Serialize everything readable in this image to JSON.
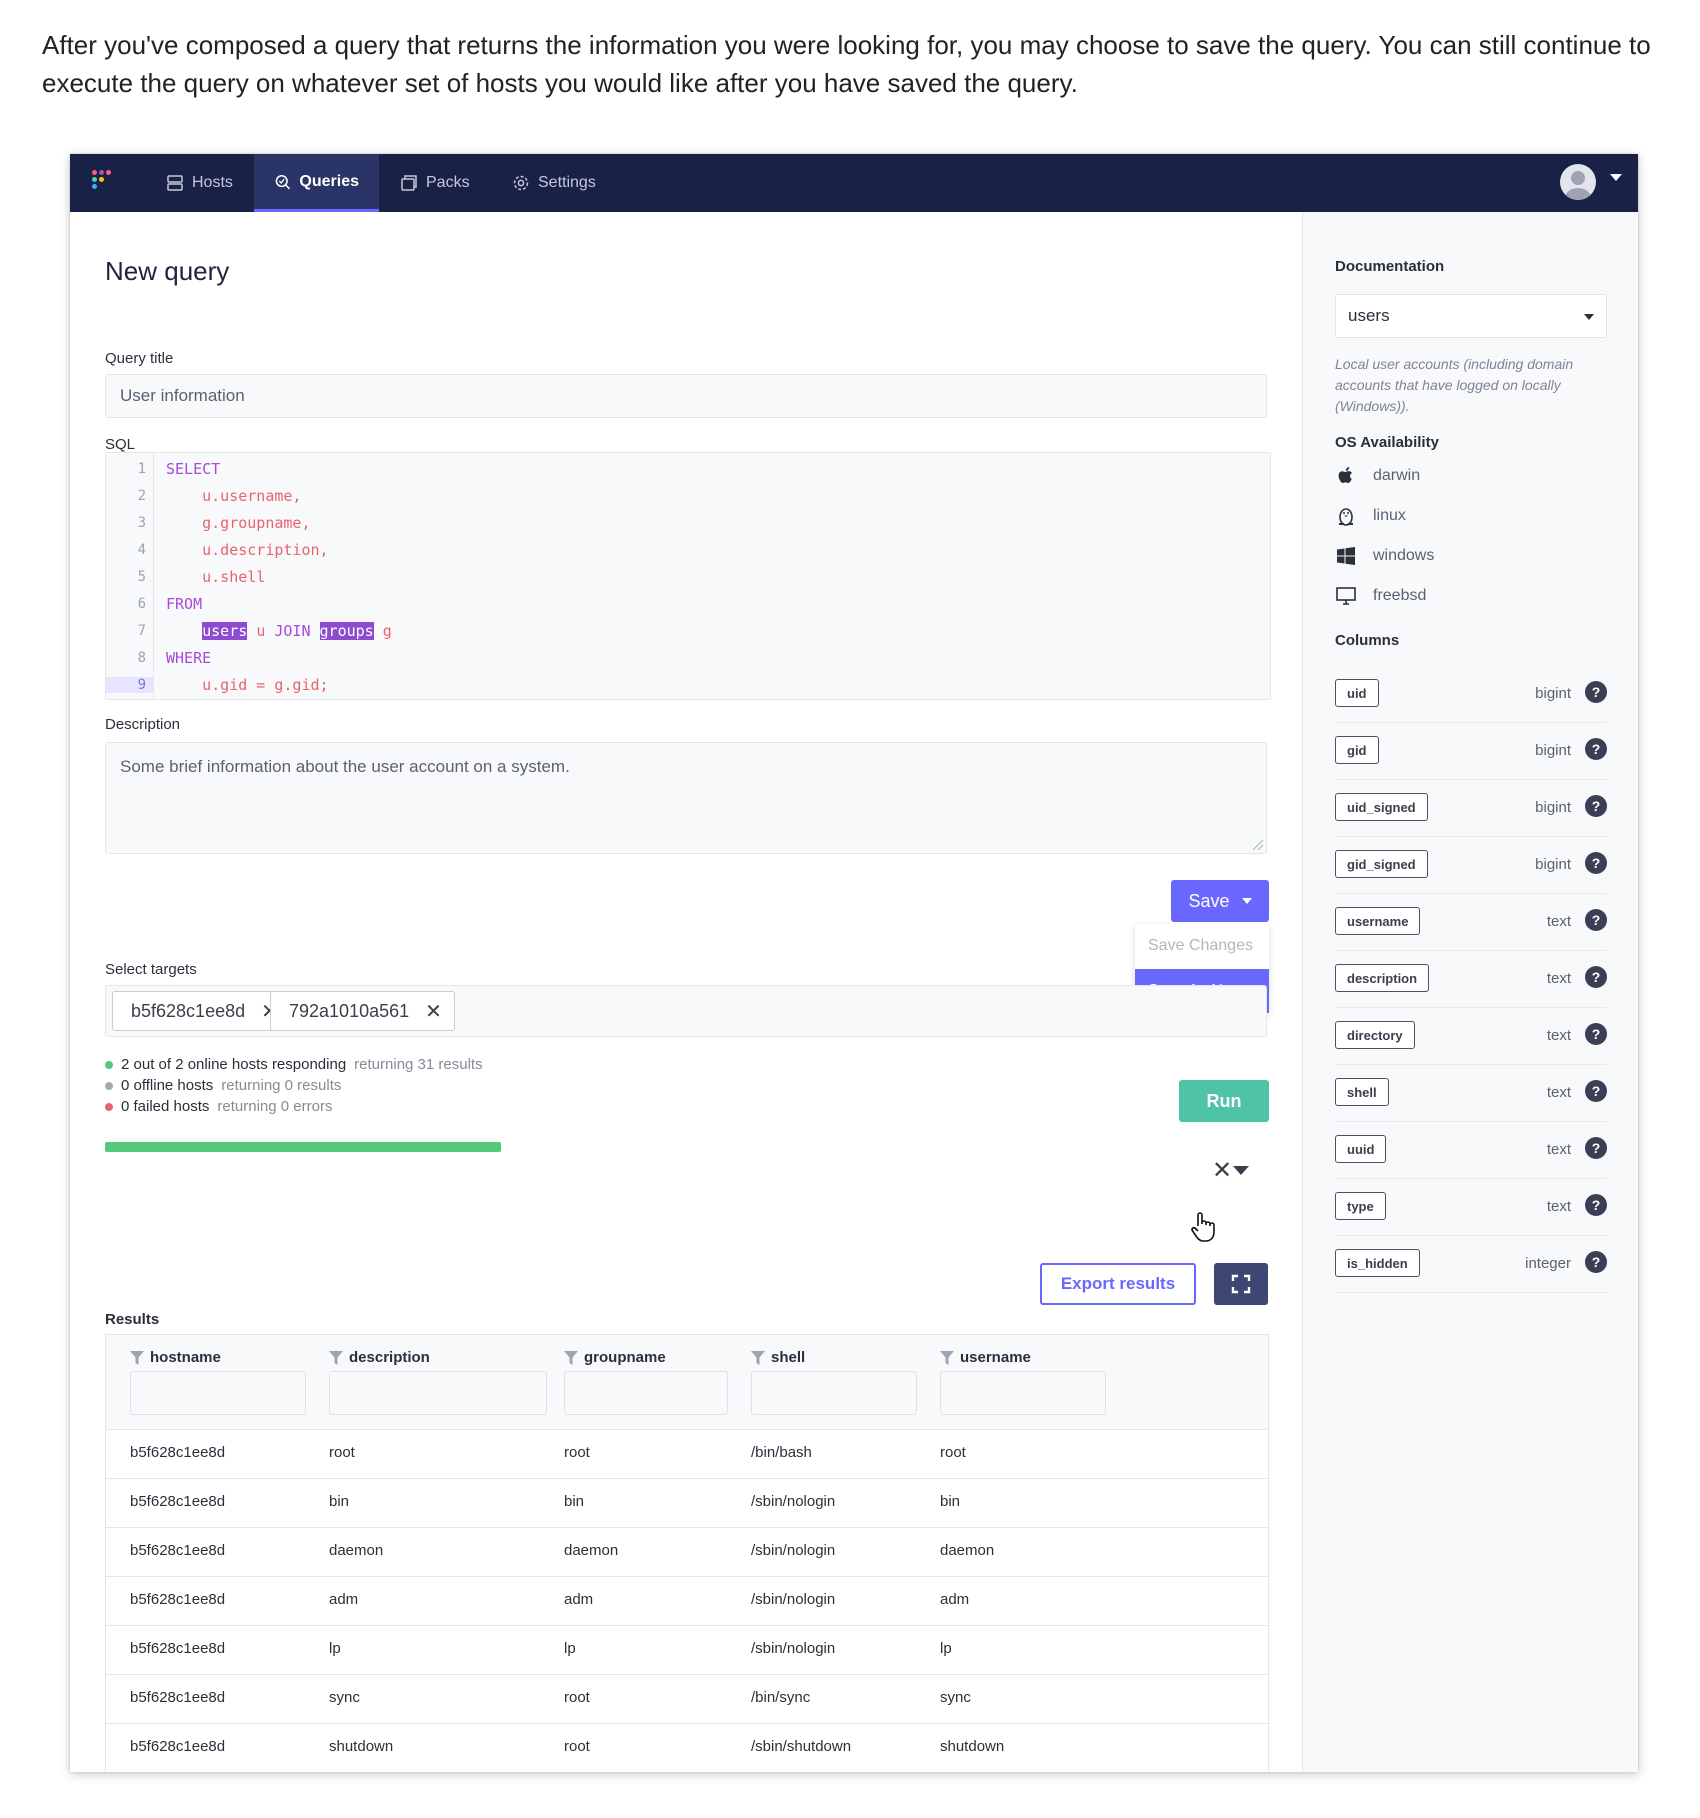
{
  "intro": "After you've composed a query that returns the information you were looking for, you may choose to save the query. You can still continue to execute the query on whatever set of hosts you would like after you have saved the query.",
  "nav": {
    "items": [
      {
        "label": "Hosts",
        "icon": "server-icon"
      },
      {
        "label": "Queries",
        "icon": "query-icon"
      },
      {
        "label": "Packs",
        "icon": "packs-icon"
      },
      {
        "label": "Settings",
        "icon": "gear-icon"
      }
    ],
    "active": "Queries",
    "logo_colors": [
      "#ff5c83",
      "#9b59b6",
      "#4fd0a5",
      "#ffc107",
      "#3fb0ff"
    ]
  },
  "main": {
    "title": "New query",
    "query_title_label": "Query title",
    "query_title_value": "User information",
    "sql_label": "SQL",
    "sql_lines": [
      "SELECT",
      "    u.username,",
      "    g.groupname,",
      "    u.description,",
      "    u.shell",
      "FROM",
      "    users u JOIN groups g",
      "WHERE",
      "    u.gid = g.gid;"
    ],
    "description_label": "Description",
    "description_value": "Some brief information about the user account on a system.",
    "save_label": "Save",
    "save_menu": [
      "Save Changes",
      "Save As New..."
    ],
    "targets_label": "Select targets",
    "targets": [
      "b5f628c1ee8d",
      "792a1010a561"
    ],
    "status": [
      {
        "main": "2 out of 2 online hosts responding",
        "sub": "returning 31 results",
        "color": "#53c97a"
      },
      {
        "main": "0 offline hosts",
        "sub": "returning 0 results",
        "color": "#a6a9b4"
      },
      {
        "main": "0 failed hosts",
        "sub": "returning 0 errors",
        "color": "#e8636d"
      }
    ],
    "run_label": "Run",
    "export_label": "Export results",
    "results_label": "Results",
    "columns": [
      "hostname",
      "description",
      "groupname",
      "shell",
      "username"
    ],
    "rows": [
      [
        "b5f628c1ee8d",
        "root",
        "root",
        "/bin/bash",
        "root"
      ],
      [
        "b5f628c1ee8d",
        "bin",
        "bin",
        "/sbin/nologin",
        "bin"
      ],
      [
        "b5f628c1ee8d",
        "daemon",
        "daemon",
        "/sbin/nologin",
        "daemon"
      ],
      [
        "b5f628c1ee8d",
        "adm",
        "adm",
        "/sbin/nologin",
        "adm"
      ],
      [
        "b5f628c1ee8d",
        "lp",
        "lp",
        "/sbin/nologin",
        "lp"
      ],
      [
        "b5f628c1ee8d",
        "sync",
        "root",
        "/bin/sync",
        "sync"
      ],
      [
        "b5f628c1ee8d",
        "shutdown",
        "root",
        "/sbin/shutdown",
        "shutdown"
      ]
    ]
  },
  "sidebar": {
    "doc_heading": "Documentation",
    "table_selected": "users",
    "table_description": "Local user accounts (including domain accounts that have logged on locally (Windows)).",
    "os_heading": "OS Availability",
    "os": [
      {
        "name": "darwin",
        "icon": "apple-icon"
      },
      {
        "name": "linux",
        "icon": "linux-icon"
      },
      {
        "name": "windows",
        "icon": "windows-icon"
      },
      {
        "name": "freebsd",
        "icon": "monitor-icon"
      }
    ],
    "columns_heading": "Columns",
    "columns": [
      {
        "name": "uid",
        "type": "bigint"
      },
      {
        "name": "gid",
        "type": "bigint"
      },
      {
        "name": "uid_signed",
        "type": "bigint"
      },
      {
        "name": "gid_signed",
        "type": "bigint"
      },
      {
        "name": "username",
        "type": "text"
      },
      {
        "name": "description",
        "type": "text"
      },
      {
        "name": "directory",
        "type": "text"
      },
      {
        "name": "shell",
        "type": "text"
      },
      {
        "name": "uuid",
        "type": "text"
      },
      {
        "name": "type",
        "type": "text"
      },
      {
        "name": "is_hidden",
        "type": "integer"
      }
    ],
    "help_glyph": "?"
  }
}
